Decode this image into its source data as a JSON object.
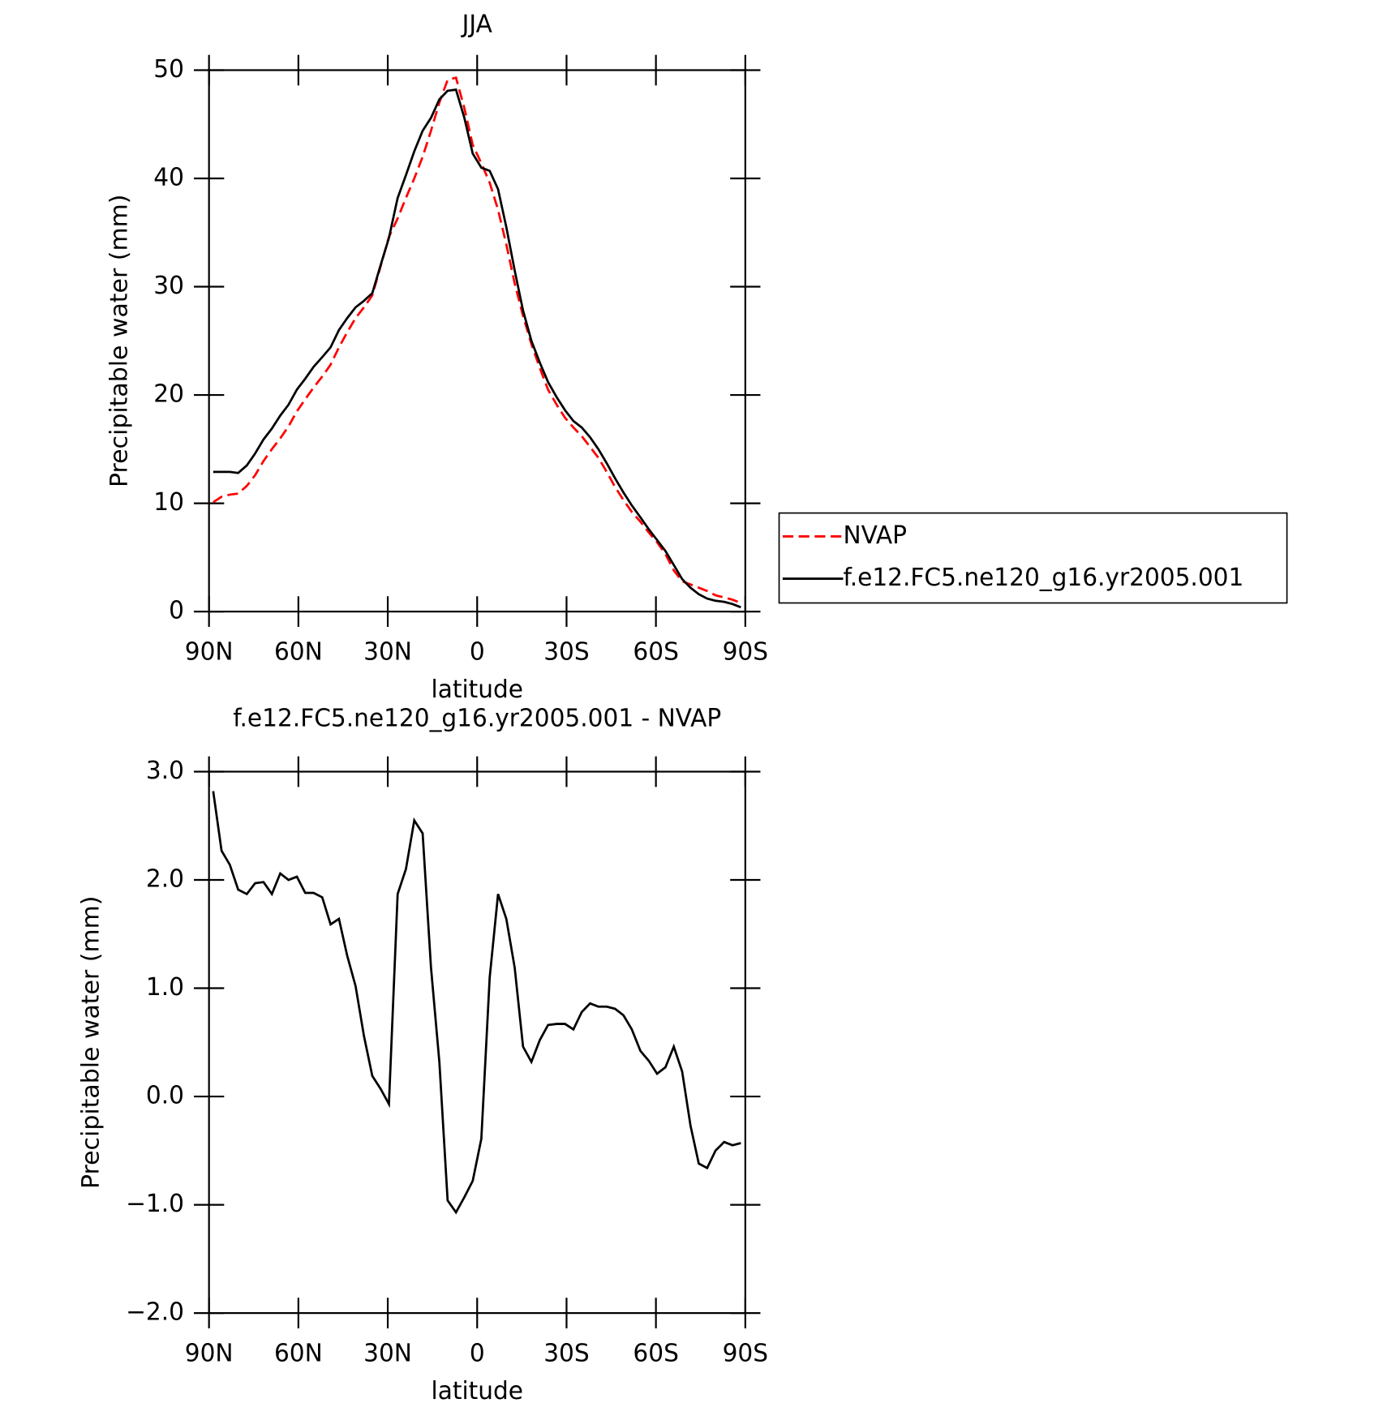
{
  "chart_data": [
    {
      "type": "line",
      "title": "JJA",
      "xlabel": "latitude",
      "ylabel": "Precipitable water (mm)",
      "x": [
        88.6,
        85.8,
        83.0,
        80.2,
        77.3,
        74.5,
        71.7,
        68.9,
        66.1,
        63.3,
        60.5,
        57.7,
        54.9,
        52.0,
        49.2,
        46.4,
        43.6,
        40.8,
        38.0,
        35.2,
        32.4,
        29.6,
        26.7,
        23.9,
        21.1,
        18.3,
        15.5,
        12.7,
        9.9,
        7.1,
        4.3,
        1.5,
        -1.4,
        -4.2,
        -7.0,
        -9.8,
        -12.6,
        -15.4,
        -18.2,
        -21.0,
        -23.8,
        -26.7,
        -29.5,
        -32.3,
        -35.1,
        -37.9,
        -40.7,
        -43.5,
        -46.3,
        -49.1,
        -51.9,
        -54.8,
        -57.6,
        -60.4,
        -63.2,
        -66.0,
        -68.8,
        -71.6,
        -74.4,
        -77.2,
        -80.0,
        -82.9,
        -85.7,
        -88.5
      ],
      "series": [
        {
          "name": "NVAP",
          "color": "#ff0000",
          "dashed": true,
          "values": [
            10.1,
            10.6,
            10.8,
            10.9,
            11.6,
            12.6,
            13.9,
            15.0,
            16.0,
            17.1,
            18.5,
            19.6,
            20.7,
            21.7,
            22.8,
            24.4,
            25.8,
            27.1,
            28.1,
            29.2,
            31.9,
            34.6,
            36.3,
            38.2,
            40.0,
            42.0,
            44.4,
            47.0,
            49.1,
            49.3,
            46.5,
            43.1,
            41.4,
            39.6,
            37.1,
            33.9,
            30.3,
            27.3,
            24.7,
            22.5,
            20.5,
            19.1,
            17.9,
            17.0,
            16.2,
            15.2,
            14.2,
            12.9,
            11.5,
            10.3,
            9.2,
            8.3,
            7.3,
            6.4,
            5.3,
            3.8,
            2.8,
            2.5,
            2.2,
            1.9,
            1.5,
            1.3,
            1.1,
            0.8
          ]
        },
        {
          "name": "f.e12.FC5.ne120_g16.yr2005.001",
          "color": "#000000",
          "dashed": false,
          "values": [
            12.9,
            12.9,
            12.9,
            12.8,
            13.5,
            14.6,
            15.9,
            16.9,
            18.1,
            19.1,
            20.5,
            21.5,
            22.6,
            23.5,
            24.4,
            26.0,
            27.1,
            28.1,
            28.7,
            29.4,
            32.0,
            34.5,
            38.2,
            40.3,
            42.5,
            44.4,
            45.6,
            47.3,
            48.1,
            48.2,
            45.6,
            42.3,
            41.0,
            40.7,
            39.0,
            35.5,
            31.5,
            27.8,
            25.0,
            23.0,
            21.2,
            19.8,
            18.6,
            17.6,
            17.0,
            16.1,
            15.0,
            13.7,
            12.3,
            11.0,
            9.8,
            8.7,
            7.6,
            6.6,
            5.6,
            4.3,
            3.0,
            2.2,
            1.6,
            1.2,
            1.0,
            0.9,
            0.7,
            0.4
          ]
        }
      ],
      "xlim": [
        90,
        -90
      ],
      "xticks": [
        {
          "value": 90,
          "label": "90N"
        },
        {
          "value": 60,
          "label": "60N"
        },
        {
          "value": 30,
          "label": "30N"
        },
        0,
        {
          "value": -30,
          "label": "30S"
        },
        {
          "value": -60,
          "label": "60S"
        },
        {
          "value": -90,
          "label": "90S"
        }
      ],
      "ylim": [
        0,
        50
      ],
      "yticks": [
        0,
        10,
        20,
        30,
        40,
        50
      ],
      "legend": "right"
    },
    {
      "type": "line",
      "title": "f.e12.FC5.ne120_g16.yr2005.001 - NVAP",
      "xlabel": "latitude",
      "ylabel": "Precipitable water (mm)",
      "x": [
        88.6,
        85.8,
        83.0,
        80.2,
        77.3,
        74.5,
        71.7,
        68.9,
        66.1,
        63.3,
        60.5,
        57.7,
        54.9,
        52.0,
        49.2,
        46.4,
        43.6,
        40.8,
        38.0,
        35.2,
        32.4,
        29.6,
        26.7,
        23.9,
        21.1,
        18.3,
        15.5,
        12.7,
        9.9,
        7.1,
        4.3,
        1.5,
        -1.4,
        -4.2,
        -7.0,
        -9.8,
        -12.6,
        -15.4,
        -18.2,
        -21.0,
        -23.8,
        -26.7,
        -29.5,
        -32.3,
        -35.1,
        -37.9,
        -40.7,
        -43.5,
        -46.3,
        -49.1,
        -51.9,
        -54.8,
        -57.6,
        -60.4,
        -63.2,
        -66.0,
        -68.8,
        -71.6,
        -74.4,
        -77.2,
        -80.0,
        -82.9,
        -85.7,
        -88.5
      ],
      "values": [
        2.82,
        2.27,
        2.14,
        1.91,
        1.87,
        1.97,
        1.98,
        1.87,
        2.06,
        2.0,
        2.03,
        1.88,
        1.88,
        1.84,
        1.59,
        1.64,
        1.3,
        1.02,
        0.56,
        0.19,
        0.07,
        -0.07,
        1.87,
        2.1,
        2.55,
        2.43,
        1.19,
        0.32,
        -0.96,
        -1.07,
        -0.93,
        -0.78,
        -0.39,
        1.1,
        1.87,
        1.64,
        1.19,
        0.46,
        0.32,
        0.52,
        0.66,
        0.67,
        0.67,
        0.62,
        0.78,
        0.86,
        0.83,
        0.83,
        0.81,
        0.75,
        0.62,
        0.42,
        0.33,
        0.21,
        0.27,
        0.46,
        0.23,
        -0.27,
        -0.62,
        -0.66,
        -0.5,
        -0.42,
        -0.45,
        -0.43
      ],
      "color": "#000000",
      "xlim": [
        90,
        -90
      ],
      "xticks": [
        {
          "value": 90,
          "label": "90N"
        },
        {
          "value": 60,
          "label": "60N"
        },
        {
          "value": 30,
          "label": "30N"
        },
        0,
        {
          "value": -30,
          "label": "30S"
        },
        {
          "value": -60,
          "label": "60S"
        },
        {
          "value": -90,
          "label": "90S"
        }
      ],
      "ylim": [
        -2,
        3
      ],
      "yticks": [
        {
          "value": -2,
          "label": "−2.0"
        },
        {
          "value": -1,
          "label": "−1.0"
        },
        {
          "value": 0,
          "label": "0.0"
        },
        {
          "value": 1,
          "label": "1.0"
        },
        {
          "value": 2,
          "label": "2.0"
        },
        {
          "value": 3,
          "label": "3.0"
        }
      ]
    }
  ]
}
